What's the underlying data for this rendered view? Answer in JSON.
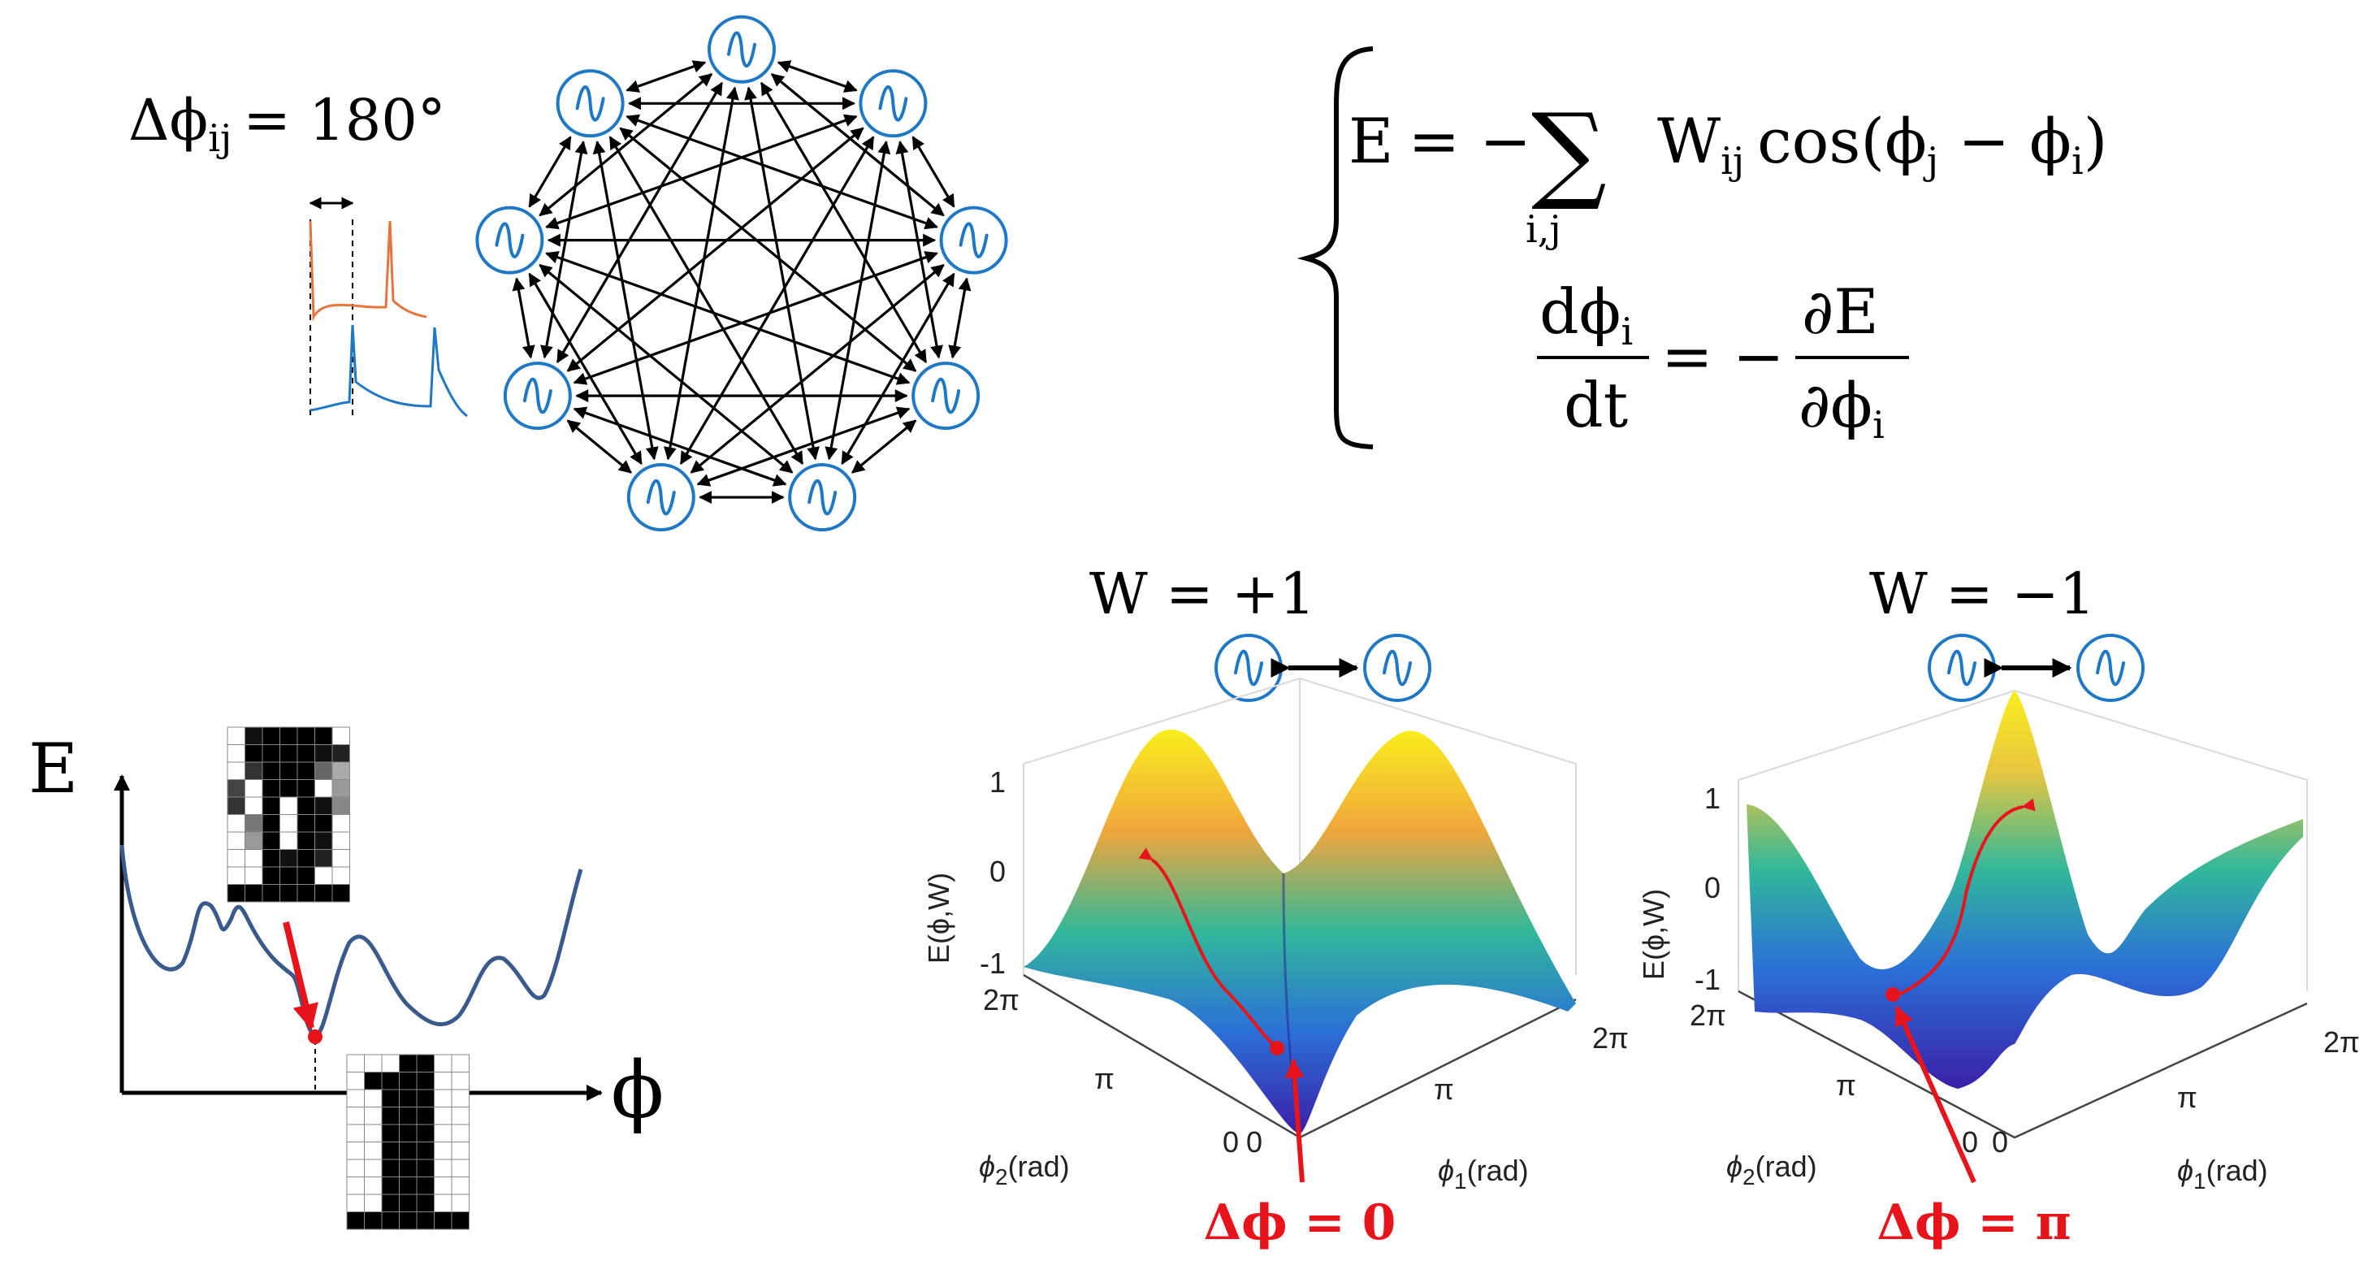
{
  "top_left": {
    "phase_label": "Δϕ",
    "phase_sub": "ij",
    "phase_value": "= 180°",
    "trace_colors": [
      "#e8743b",
      "#1f78c6"
    ],
    "oscillator_count": 9,
    "oscillator_color": "#1f78c6"
  },
  "equations": {
    "energy_lhs": "E",
    "energy_rhs_prefix": "= −",
    "sum_symbol": "∑",
    "sum_index": "i,j",
    "energy_term_w": "W",
    "energy_term_w_sub": "ij",
    "energy_term_cos": "cos(ϕ",
    "energy_term_j": "j",
    "energy_term_minus": " − ϕ",
    "energy_term_i": "i",
    "energy_term_close": ")",
    "deriv_num": "dϕ",
    "deriv_num_sub": "i",
    "deriv_den": "dt",
    "deriv_eq": "= −",
    "partial_num": "∂E",
    "partial_den": "∂ϕ",
    "partial_den_sub": "i"
  },
  "landscape": {
    "y_axis_label": "E",
    "x_axis_label": "ϕ",
    "arrow_color": "#e8141b",
    "curve_color": "#3a5a8c"
  },
  "surfaces": [
    {
      "title": "W = +1",
      "zlabel": "E(ϕ,W)",
      "z_ticks": [
        "1",
        "0",
        "-1"
      ],
      "phi2_ticks": [
        "2π",
        "π",
        "0"
      ],
      "phi1_ticks": [
        "0",
        "π",
        "2π"
      ],
      "xlabel": "ϕ",
      "xlabel_sub": "1",
      "xlabel_unit": "(rad)",
      "ylabel": "ϕ",
      "ylabel_sub": "2",
      "ylabel_unit": "(rad)",
      "result": "Δϕ = 0"
    },
    {
      "title": "W = −1",
      "zlabel": "E(ϕ,W)",
      "z_ticks": [
        "1",
        "0",
        "-1"
      ],
      "phi2_ticks": [
        "2π",
        "π",
        "0"
      ],
      "phi1_ticks": [
        "0",
        "π",
        "2π"
      ],
      "xlabel": "ϕ",
      "xlabel_sub": "1",
      "xlabel_unit": "(rad)",
      "ylabel": "ϕ",
      "ylabel_sub": "2",
      "ylabel_unit": "(rad)",
      "result": "Δϕ = π"
    }
  ],
  "colors": {
    "accent_red": "#e8141b",
    "surface_low": "#3b2bb8",
    "surface_mid": "#1fa6a0",
    "surface_high": "#f8ee1c"
  }
}
